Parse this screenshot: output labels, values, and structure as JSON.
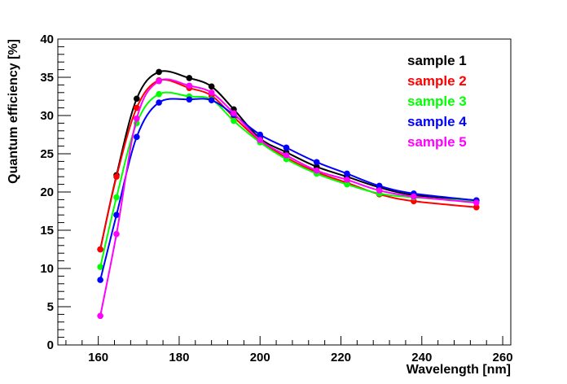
{
  "chart_data": {
    "type": "line",
    "title": "",
    "xlabel": "Wavelength [nm]",
    "ylabel": "Quantum efficiency [%]",
    "xlim": [
      150,
      262
    ],
    "ylim": [
      0,
      40
    ],
    "x_ticks": [
      160,
      180,
      200,
      220,
      240,
      260
    ],
    "y_ticks": [
      0,
      5,
      10,
      15,
      20,
      25,
      30,
      35,
      40
    ],
    "grid": false,
    "legend_position": "top-right",
    "series": [
      {
        "name": "sample 1",
        "color": "#000000",
        "points": [
          [
            160.5,
            12.5
          ],
          [
            164.5,
            22.2
          ],
          [
            169.5,
            32.2
          ],
          [
            175,
            35.7
          ],
          [
            182.5,
            34.9
          ],
          [
            188,
            33.8
          ],
          [
            193.5,
            30.8
          ],
          [
            200,
            27.0
          ],
          [
            206.5,
            25.2
          ],
          [
            214,
            23.3
          ],
          [
            221.5,
            22.0
          ],
          [
            229.5,
            20.6
          ],
          [
            238,
            19.6
          ],
          [
            253.5,
            18.9
          ]
        ]
      },
      {
        "name": "sample 2",
        "color": "#ff0000",
        "points": [
          [
            160.5,
            12.5
          ],
          [
            164.5,
            22.0
          ],
          [
            169.5,
            31.0
          ],
          [
            175,
            34.6
          ],
          [
            182.5,
            33.6
          ],
          [
            188,
            32.6
          ],
          [
            193.5,
            29.8
          ],
          [
            200,
            26.7
          ],
          [
            206.5,
            24.5
          ],
          [
            214,
            22.6
          ],
          [
            221.5,
            21.2
          ],
          [
            229.5,
            19.7
          ],
          [
            238,
            18.8
          ],
          [
            253.5,
            18.0
          ]
        ]
      },
      {
        "name": "sample 3",
        "color": "#00ff00",
        "points": [
          [
            160.5,
            10.2
          ],
          [
            164.5,
            19.3
          ],
          [
            169.5,
            29.0
          ],
          [
            175,
            32.8
          ],
          [
            182.5,
            32.5
          ],
          [
            188,
            32.1
          ],
          [
            193.5,
            29.3
          ],
          [
            200,
            26.5
          ],
          [
            206.5,
            24.3
          ],
          [
            214,
            22.4
          ],
          [
            221.5,
            21.0
          ],
          [
            229.5,
            19.8
          ],
          [
            238,
            19.3
          ],
          [
            253.5,
            18.8
          ]
        ]
      },
      {
        "name": "sample 4",
        "color": "#0000ff",
        "points": [
          [
            160.5,
            8.5
          ],
          [
            164.5,
            17.0
          ],
          [
            169.5,
            27.2
          ],
          [
            175,
            31.7
          ],
          [
            182.5,
            32.1
          ],
          [
            188,
            32.0
          ],
          [
            193.5,
            30.1
          ],
          [
            200,
            27.5
          ],
          [
            206.5,
            25.8
          ],
          [
            214,
            23.9
          ],
          [
            221.5,
            22.4
          ],
          [
            229.5,
            20.8
          ],
          [
            238,
            19.8
          ],
          [
            253.5,
            18.9
          ]
        ]
      },
      {
        "name": "sample 5",
        "color": "#ff00ff",
        "points": [
          [
            160.5,
            3.8
          ],
          [
            164.5,
            14.5
          ],
          [
            169.5,
            29.6
          ],
          [
            175,
            34.5
          ],
          [
            182.5,
            33.9
          ],
          [
            188,
            33.0
          ],
          [
            193.5,
            30.3
          ],
          [
            200,
            26.8
          ],
          [
            206.5,
            24.8
          ],
          [
            214,
            22.8
          ],
          [
            221.5,
            21.6
          ],
          [
            229.5,
            20.2
          ],
          [
            238,
            19.4
          ],
          [
            253.5,
            18.6
          ]
        ]
      }
    ]
  }
}
